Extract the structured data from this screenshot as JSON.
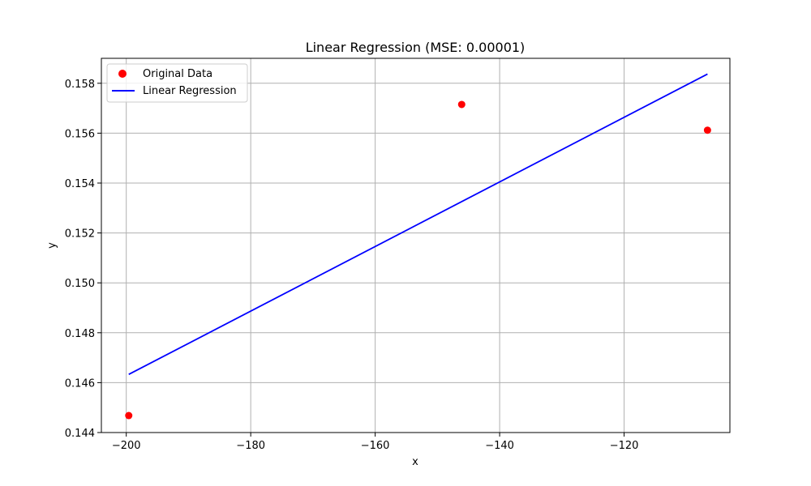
{
  "chart_data": {
    "type": "scatter",
    "title": "Linear Regression (MSE: 0.00001)",
    "xlabel": "x",
    "ylabel": "y",
    "xlim": [
      -204,
      -103
    ],
    "ylim": [
      0.144,
      0.159
    ],
    "xticks": [
      -200,
      -180,
      -160,
      -140,
      -120
    ],
    "xtick_labels": [
      "−200",
      "−180",
      "−160",
      "−140",
      "−120"
    ],
    "yticks": [
      0.144,
      0.146,
      0.148,
      0.15,
      0.152,
      0.154,
      0.156,
      0.158
    ],
    "ytick_labels": [
      "0.144",
      "0.146",
      "0.148",
      "0.150",
      "0.152",
      "0.154",
      "0.156",
      "0.158"
    ],
    "grid": true,
    "legend_position": "top-left",
    "series": [
      {
        "name": "Original Data",
        "kind": "scatter",
        "color": "#ff0000",
        "x": [
          -199.6,
          -146.1,
          -106.6
        ],
        "y": [
          0.14468,
          0.15715,
          0.15612
        ]
      },
      {
        "name": "Linear Regression",
        "kind": "line",
        "color": "#0000ff",
        "x": [
          -199.6,
          -106.6
        ],
        "y": [
          0.14633,
          0.15837
        ]
      }
    ]
  }
}
